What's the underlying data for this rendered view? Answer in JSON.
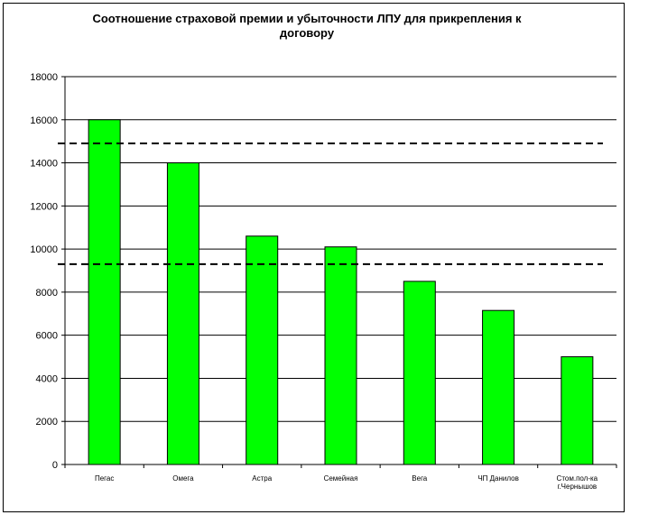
{
  "chart_data": {
    "type": "bar",
    "title": "Соотношение  страховой  премии и убыточности  ЛПУ для прикрепления к\nдоговору",
    "xlabel": "",
    "ylabel": "",
    "categories": [
      "Пегас",
      "Омега",
      "Астра",
      "Семейная",
      "Вега",
      "ЧП Данилов",
      "Стом.пол-ка\nг.Чернышов"
    ],
    "values": [
      16000,
      14000,
      10600,
      10100,
      8500,
      7150,
      5000
    ],
    "ylim": [
      0,
      18000
    ],
    "yticks": [
      0,
      2000,
      4000,
      6000,
      8000,
      10000,
      12000,
      14000,
      16000,
      18000
    ],
    "reference_lines": [
      14900,
      9300
    ],
    "grid": true,
    "legend": "none",
    "colors": {
      "bar": "#00ff00",
      "bar_outline": "#000000",
      "grid": "#000000",
      "reference_line": "#000000"
    }
  }
}
